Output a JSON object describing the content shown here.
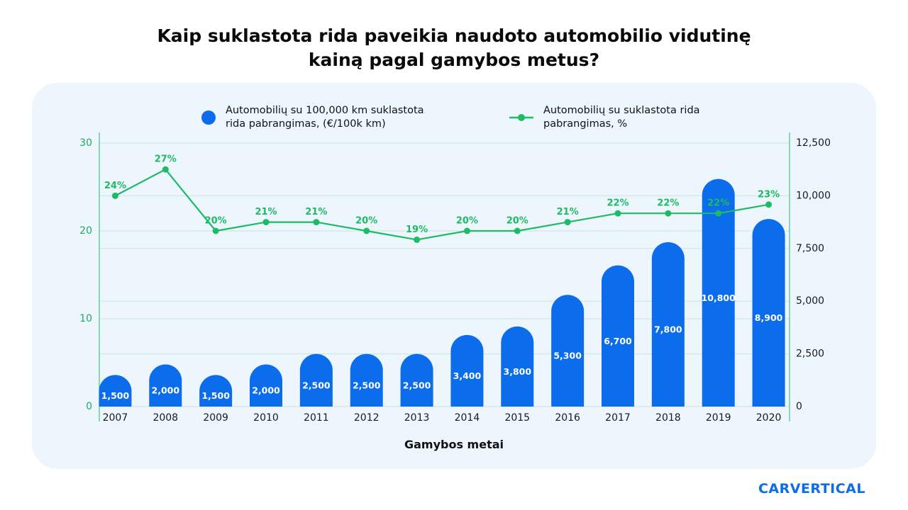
{
  "chart_data": {
    "type": "bar-line",
    "title": "Kaip suklastota rida paveikia naudoto automobilio vidutinę kainą pagal gamybos metus?",
    "x_label": "Gamybos metai",
    "categories": [
      "2007",
      "2008",
      "2009",
      "2010",
      "2011",
      "2012",
      "2013",
      "2014",
      "2015",
      "2016",
      "2017",
      "2018",
      "2019",
      "2020"
    ],
    "series": [
      {
        "name": "Automobilių su 100,000 km suklastota rida pabrangimas, (€/100k km)",
        "type": "bar",
        "axis": "y2",
        "color": "#0b6cec",
        "values": [
          1500,
          2000,
          1500,
          2000,
          2500,
          2500,
          2500,
          3400,
          3800,
          5300,
          6700,
          7800,
          10800,
          8900
        ],
        "value_labels": [
          "1,500",
          "2,000",
          "1,500",
          "2,000",
          "2,500",
          "2,500",
          "2,500",
          "3,400",
          "3,800",
          "5,300",
          "6,700",
          "7,800",
          "10,800",
          "8,900"
        ]
      },
      {
        "name": "Automobilių su suklastota rida pabrangimas, %",
        "type": "line",
        "axis": "y",
        "color": "#1dbb66",
        "values": [
          24,
          27,
          20,
          21,
          21,
          20,
          19,
          20,
          20,
          21,
          22,
          22,
          22,
          23
        ],
        "value_labels": [
          "24%",
          "27%",
          "20%",
          "21%",
          "21%",
          "20%",
          "19%",
          "20%",
          "20%",
          "21%",
          "22%",
          "22%",
          "22%",
          "23%"
        ]
      }
    ],
    "ylim": [
      0,
      30
    ],
    "yticks": [
      0,
      10,
      20,
      30
    ],
    "y2lim": [
      0,
      12500
    ],
    "y2ticks": [
      0,
      {
        "value": 2500,
        "label": "2,500"
      },
      {
        "value": 5000,
        "label": "5,000"
      },
      {
        "value": 7500,
        "label": "7,500"
      },
      {
        "value": 10000,
        "label": "10,000"
      },
      {
        "value": 12500,
        "label": "12,500"
      }
    ],
    "grid": true
  },
  "brand": "CARVERTICAL"
}
